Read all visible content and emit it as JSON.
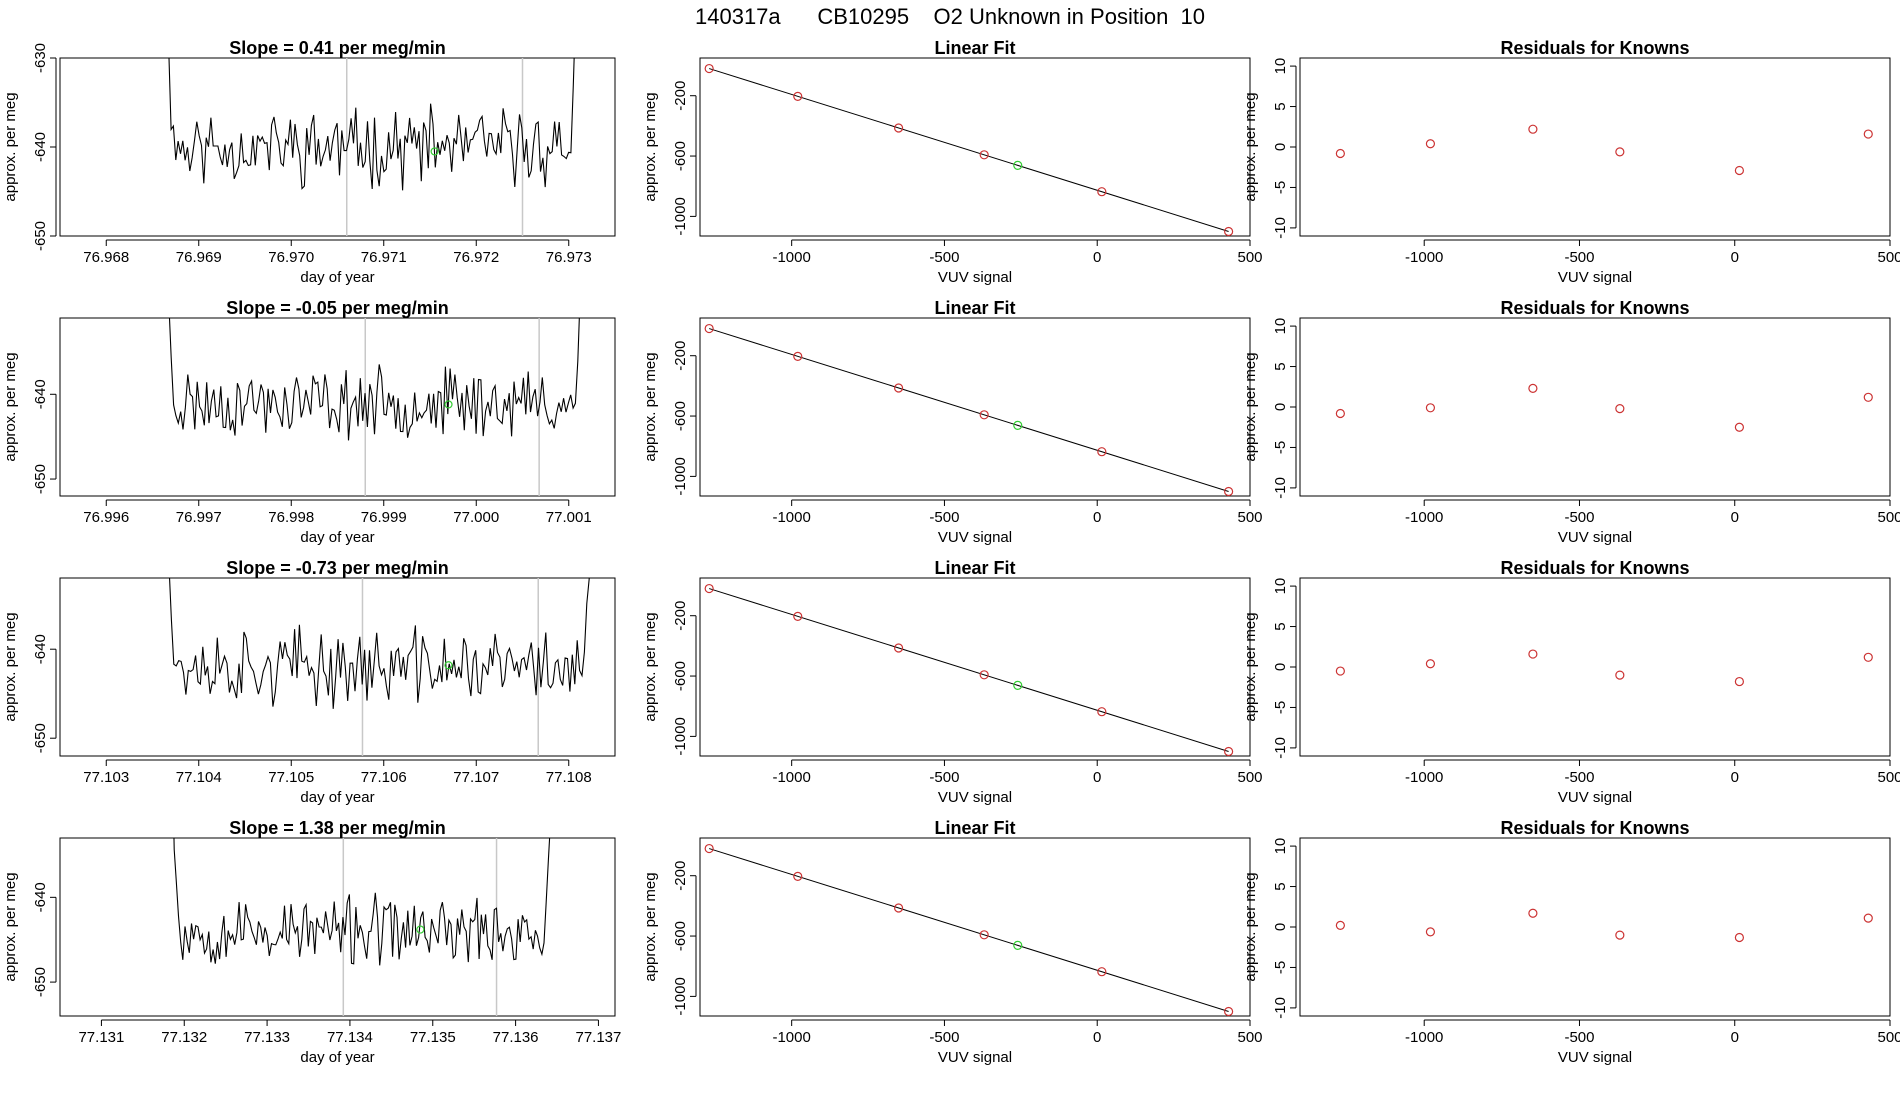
{
  "page_title": "140317a      CB10295    O2 Unknown in Position  10",
  "colors": {
    "axis": "#000000",
    "trace": "#000000",
    "known_point": "#cc3333",
    "unknown_point": "#33cc33",
    "vline": "#c8c8c8"
  },
  "chart_data": [
    {
      "row": 0,
      "type": "line",
      "title": "Slope =  0.41  per meg/min",
      "xlabel": "day of year",
      "ylabel": "approx. per meg",
      "xlim": [
        76.9675,
        76.9735
      ],
      "ylim": [
        -650,
        -630
      ],
      "xticks": [
        76.968,
        76.969,
        76.97,
        76.971,
        76.972,
        76.973
      ],
      "xtick_labels": [
        "76.968",
        "76.969",
        "76.970",
        "76.971",
        "76.972",
        "76.973"
      ],
      "yticks": [
        -650,
        -640,
        -630
      ],
      "ytick_labels": [
        "-650",
        "-640",
        "-630"
      ],
      "vlines": [
        76.9706,
        76.9725
      ],
      "trace_start": 76.9686,
      "trace_end": 76.97315,
      "baseline": -640,
      "amplitude": 3.2,
      "seed": 11,
      "unknown_point": {
        "x": 76.97155,
        "y": -640.5
      }
    },
    {
      "row": 1,
      "type": "line",
      "title": "Slope =  -0.05  per meg/min",
      "xlabel": "day of year",
      "ylabel": "approx. per meg",
      "xlim": [
        76.9955,
        77.0015
      ],
      "ylim": [
        -652,
        -631
      ],
      "xticks": [
        76.996,
        76.997,
        76.998,
        76.999,
        77.0,
        77.001
      ],
      "xtick_labels": [
        "76.996",
        "76.997",
        "76.998",
        "76.999",
        "77.000",
        "77.001"
      ],
      "yticks": [
        -650,
        -640
      ],
      "ytick_labels": [
        "-650",
        "-640"
      ],
      "vlines": [
        76.9988,
        77.00068
      ],
      "trace_start": 76.9966,
      "trace_end": 77.0012,
      "baseline": -641,
      "amplitude": 3.0,
      "seed": 23,
      "unknown_point": {
        "x": 76.9997,
        "y": -641.2
      }
    },
    {
      "row": 2,
      "type": "line",
      "title": "Slope =  -0.73  per meg/min",
      "xlabel": "day of year",
      "ylabel": "approx. per meg",
      "xlim": [
        77.1025,
        77.1085
      ],
      "ylim": [
        -652,
        -632
      ],
      "xticks": [
        77.103,
        77.104,
        77.105,
        77.106,
        77.107,
        77.108
      ],
      "xtick_labels": [
        "77.103",
        "77.104",
        "77.105",
        "77.106",
        "77.107",
        "77.108"
      ],
      "yticks": [
        -650,
        -640
      ],
      "ytick_labels": [
        "-650",
        "-640"
      ],
      "vlines": [
        77.10577,
        77.10767
      ],
      "trace_start": 77.1036,
      "trace_end": 77.1083,
      "baseline": -642,
      "amplitude": 3.2,
      "seed": 37,
      "unknown_point": {
        "x": 77.1067,
        "y": -641.8
      }
    },
    {
      "row": 3,
      "type": "line",
      "title": "Slope =  1.38  per meg/min",
      "xlabel": "day of year",
      "ylabel": "approx. per meg",
      "xlim": [
        77.1305,
        77.1372
      ],
      "ylim": [
        -654,
        -633
      ],
      "xticks": [
        77.131,
        77.132,
        77.133,
        77.134,
        77.135,
        77.136,
        77.137
      ],
      "xtick_labels": [
        "77.131",
        "77.132",
        "77.133",
        "77.134",
        "77.135",
        "77.136",
        "77.137"
      ],
      "yticks": [
        -650,
        -640
      ],
      "ytick_labels": [
        "-650",
        "-640"
      ],
      "vlines": [
        77.13392,
        77.13577
      ],
      "trace_start": 77.1318,
      "trace_end": 77.1365,
      "baseline": -644,
      "amplitude": 3.0,
      "seed": 53,
      "unknown_point": {
        "x": 77.13485,
        "y": -643.8
      }
    }
  ],
  "linear_fit": {
    "type": "scatter",
    "title": "Linear Fit",
    "xlabel": "VUV signal",
    "ylabel": "approx. per meg",
    "xlim": [
      -1300,
      500
    ],
    "ylim": [
      -1130,
      50
    ],
    "xticks": [
      -1000,
      -500,
      0,
      500
    ],
    "xtick_labels": [
      "-1000",
      "-500",
      "0",
      "500"
    ],
    "yticks": [
      -1000,
      -600,
      -200
    ],
    "ytick_labels": [
      "-1000",
      "-600",
      "-200"
    ],
    "line": [
      [
        -1270,
        -20
      ],
      [
        430,
        -1100
      ]
    ],
    "known_x": [
      -1270,
      -980,
      -650,
      -370,
      15,
      430
    ],
    "unknown_x": [
      -260
    ]
  },
  "residuals": {
    "type": "scatter",
    "title": "Residuals for Knowns",
    "xlabel": "VUV signal",
    "ylabel": "approx. per meg",
    "xlim": [
      -1400,
      500
    ],
    "ylim": [
      -11,
      11
    ],
    "xticks": [
      -1000,
      -500,
      0,
      500
    ],
    "xtick_labels": [
      "-1000",
      "-500",
      "0",
      "500"
    ],
    "yticks": [
      -10,
      -5,
      0,
      5,
      10
    ],
    "ytick_labels": [
      "-10",
      "-5",
      "0",
      "5",
      "10"
    ],
    "x": [
      -1270,
      -980,
      -650,
      -370,
      15,
      430
    ],
    "series": [
      {
        "row": 0,
        "values": [
          -0.8,
          0.4,
          2.2,
          -0.6,
          -2.9,
          1.6
        ]
      },
      {
        "row": 1,
        "values": [
          -0.8,
          -0.1,
          2.3,
          -0.2,
          -2.5,
          1.2
        ]
      },
      {
        "row": 2,
        "values": [
          -0.5,
          0.4,
          1.6,
          -1.0,
          -1.8,
          1.2
        ]
      },
      {
        "row": 3,
        "values": [
          0.2,
          -0.6,
          1.7,
          -1.0,
          -1.3,
          1.1
        ]
      }
    ]
  }
}
